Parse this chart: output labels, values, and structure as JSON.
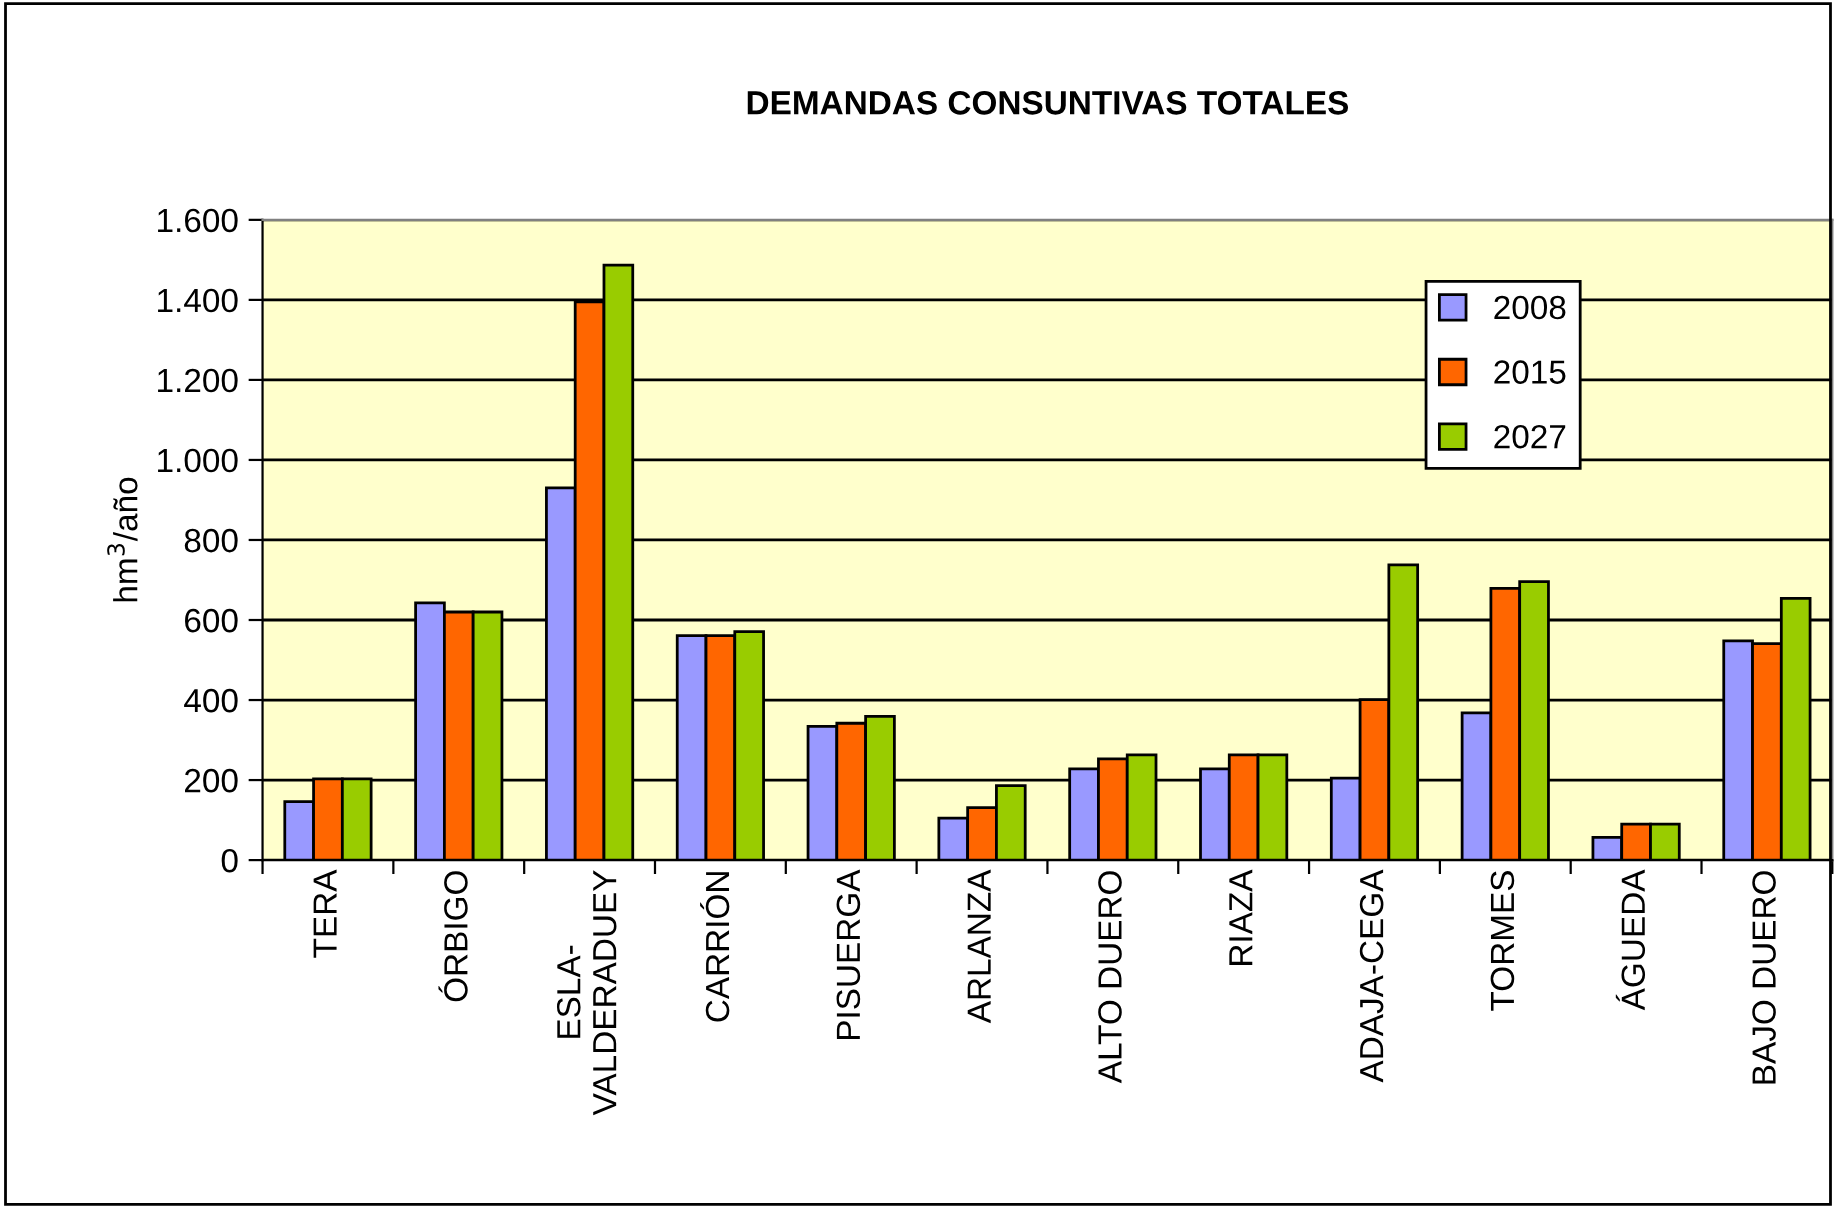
{
  "chart_data": {
    "type": "bar",
    "title": "DEMANDAS CONSUNTIVAS TOTALES",
    "ylabel": "hm$^{3}$/año",
    "categories": [
      "TERA",
      "ÓRBIGO",
      "ESLA-\nVALDERADUEY",
      "CARRIÓN",
      "PISUERGA",
      "ARLANZA",
      "ALTO DUERO",
      "RIAZA",
      "ADAJA-CEGA",
      "TORMES",
      "ÁGUEDA",
      "BAJO DUERO"
    ],
    "series": [
      {
        "name": "2008",
        "color": "#9999ff",
        "values": [
          146,
          643,
          930,
          561,
          334,
          105,
          228,
          228,
          205,
          368,
          57,
          548
        ]
      },
      {
        "name": "2015",
        "color": "#ff6600",
        "values": [
          203,
          620,
          1395,
          561,
          342,
          131,
          253,
          263,
          401,
          679,
          90,
          541
        ]
      },
      {
        "name": "2027",
        "color": "#99cc00",
        "values": [
          203,
          620,
          1487,
          571,
          359,
          186,
          263,
          263,
          738,
          696,
          90,
          654
        ]
      }
    ],
    "ylim": [
      0,
      1600
    ],
    "yticks": [
      0,
      200,
      400,
      600,
      800,
      {
        "value": 1000,
        "label": "1.000"
      },
      {
        "value": 1200,
        "label": "1.200"
      },
      {
        "value": 1400,
        "label": "1.400"
      },
      {
        "value": 1600,
        "label": "1.600"
      }
    ],
    "grid": "y",
    "legend": "top right"
  }
}
